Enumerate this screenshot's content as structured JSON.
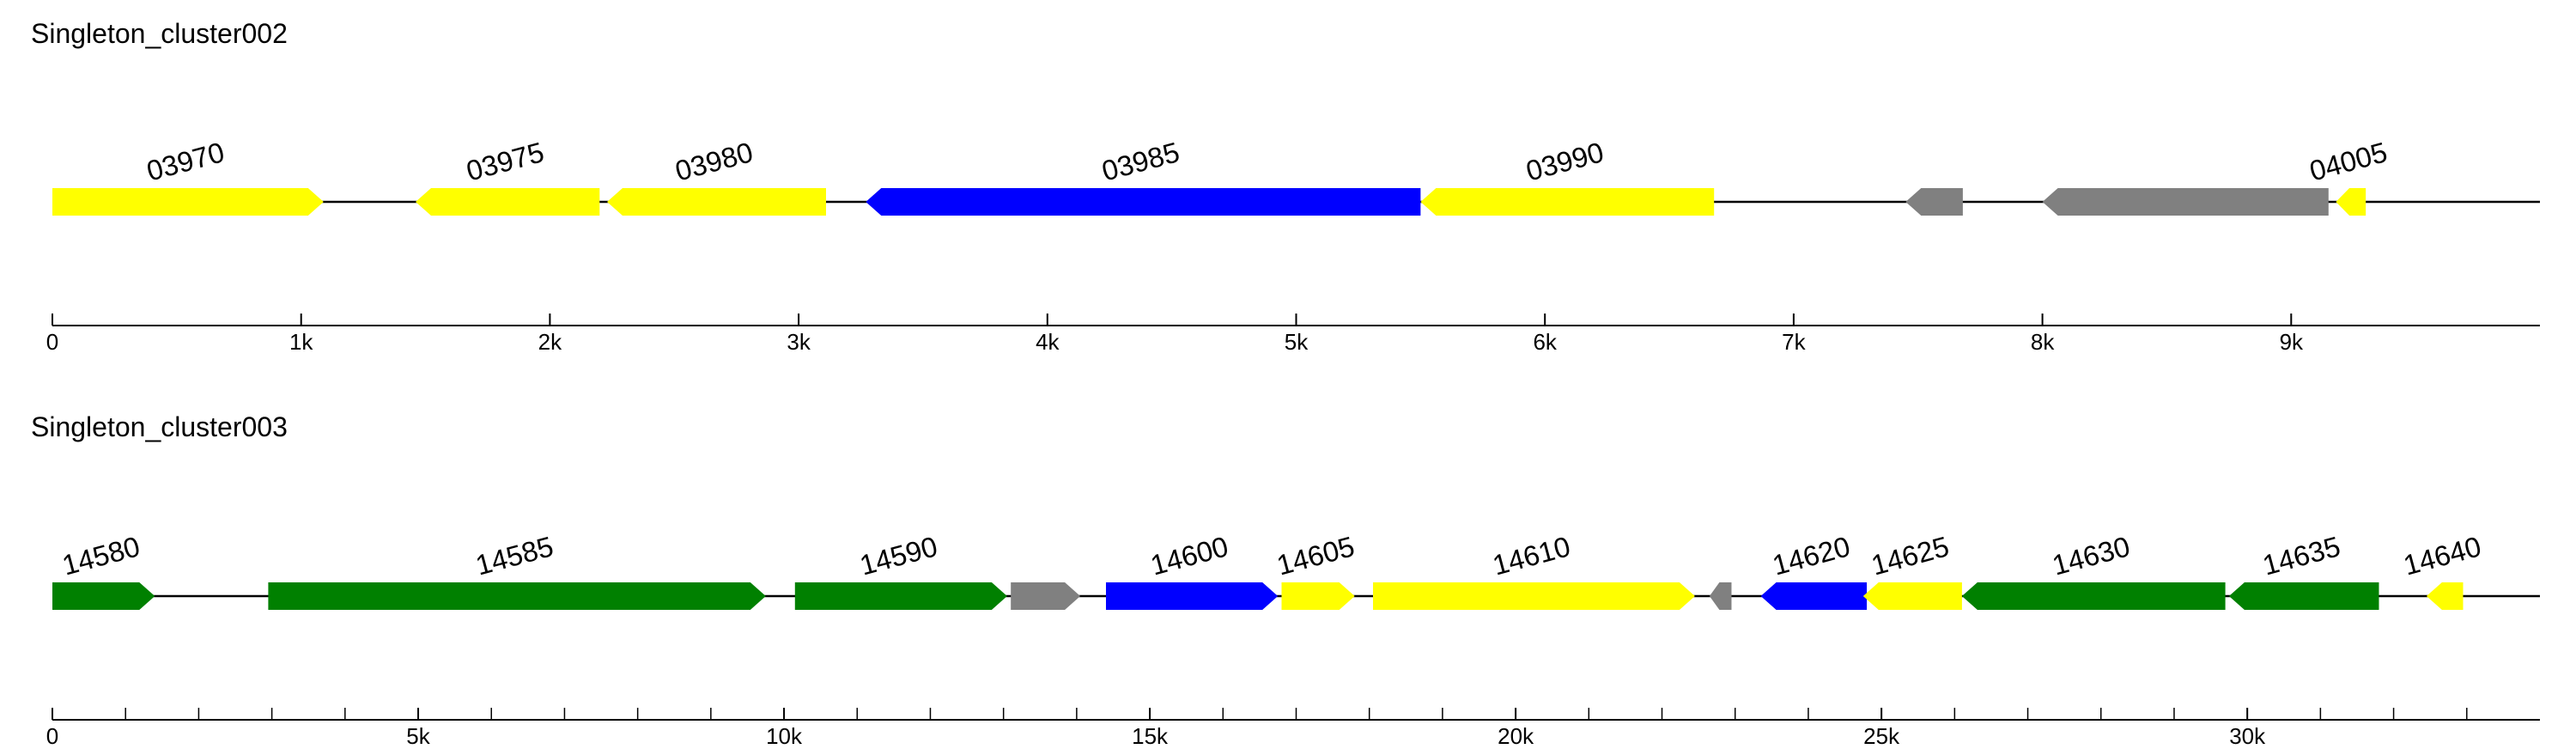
{
  "colors": {
    "yellow": "#ffff00",
    "blue": "#0000ff",
    "gray": "#808080",
    "green": "#008000",
    "backbone": "#000000"
  },
  "clusters": [
    {
      "title": "Singleton_cluster002",
      "length": 10000,
      "ticks": [
        {
          "value": 0,
          "label": "0"
        },
        {
          "value": 1000,
          "label": "1k"
        },
        {
          "value": 2000,
          "label": "2k"
        },
        {
          "value": 3000,
          "label": "3k"
        },
        {
          "value": 4000,
          "label": "4k"
        },
        {
          "value": 5000,
          "label": "5k"
        },
        {
          "value": 6000,
          "label": "6k"
        },
        {
          "value": 7000,
          "label": "7k"
        },
        {
          "value": 8000,
          "label": "8k"
        },
        {
          "value": 9000,
          "label": "9k"
        }
      ],
      "minor_ticks": [],
      "genes": [
        {
          "label": "03970",
          "start": 0,
          "end": 1090,
          "strand": "+",
          "color": "yellow"
        },
        {
          "label": "03975",
          "start": 1460,
          "end": 2200,
          "strand": "-",
          "color": "yellow"
        },
        {
          "label": "03980",
          "start": 2230,
          "end": 3110,
          "strand": "-",
          "color": "yellow"
        },
        {
          "label": "03985",
          "start": 3270,
          "end": 5500,
          "strand": "-",
          "color": "blue"
        },
        {
          "label": "03990",
          "start": 5500,
          "end": 6680,
          "strand": "-",
          "color": "yellow"
        },
        {
          "label": "",
          "start": 7450,
          "end": 7680,
          "strand": "-",
          "color": "gray"
        },
        {
          "label": "",
          "start": 8000,
          "end": 9150,
          "strand": "-",
          "color": "gray"
        },
        {
          "label": "04005",
          "start": 9180,
          "end": 9300,
          "strand": "-",
          "color": "yellow"
        }
      ]
    },
    {
      "title": "Singleton_cluster003",
      "length": 34000,
      "ticks": [
        {
          "value": 0,
          "label": "0"
        },
        {
          "value": 5000,
          "label": "5k"
        },
        {
          "value": 10000,
          "label": "10k"
        },
        {
          "value": 15000,
          "label": "15k"
        },
        {
          "value": 20000,
          "label": "20k"
        },
        {
          "value": 25000,
          "label": "25k"
        },
        {
          "value": 30000,
          "label": "30k"
        }
      ],
      "minor_ticks": [
        1000,
        2000,
        3000,
        4000,
        6000,
        7000,
        8000,
        9000,
        11000,
        12000,
        13000,
        14000,
        16000,
        17000,
        18000,
        19000,
        21000,
        22000,
        23000,
        24000,
        26000,
        27000,
        28000,
        29000,
        31000,
        32000,
        33000
      ],
      "genes": [
        {
          "label": "14580",
          "start": 0,
          "end": 1400,
          "strand": "+",
          "color": "green"
        },
        {
          "label": "14585",
          "start": 2950,
          "end": 9750,
          "strand": "+",
          "color": "green"
        },
        {
          "label": "14590",
          "start": 10150,
          "end": 13050,
          "strand": "+",
          "color": "green"
        },
        {
          "label": "",
          "start": 13100,
          "end": 14050,
          "strand": "+",
          "color": "gray"
        },
        {
          "label": "14600",
          "start": 14400,
          "end": 16750,
          "strand": "+",
          "color": "blue"
        },
        {
          "label": "14605",
          "start": 16800,
          "end": 17800,
          "strand": "+",
          "color": "yellow"
        },
        {
          "label": "14610",
          "start": 18050,
          "end": 22450,
          "strand": "+",
          "color": "yellow"
        },
        {
          "label": "",
          "start": 22650,
          "end": 22950,
          "strand": "-",
          "color": "gray"
        },
        {
          "label": "14620",
          "start": 23350,
          "end": 24800,
          "strand": "-",
          "color": "blue"
        },
        {
          "label": "14625",
          "start": 24750,
          "end": 26100,
          "strand": "-",
          "color": "yellow"
        },
        {
          "label": "14630",
          "start": 26100,
          "end": 29700,
          "strand": "-",
          "color": "green"
        },
        {
          "label": "14635",
          "start": 29750,
          "end": 31800,
          "strand": "-",
          "color": "green"
        },
        {
          "label": "14640",
          "start": 32450,
          "end": 32950,
          "strand": "-",
          "color": "yellow"
        }
      ]
    }
  ]
}
